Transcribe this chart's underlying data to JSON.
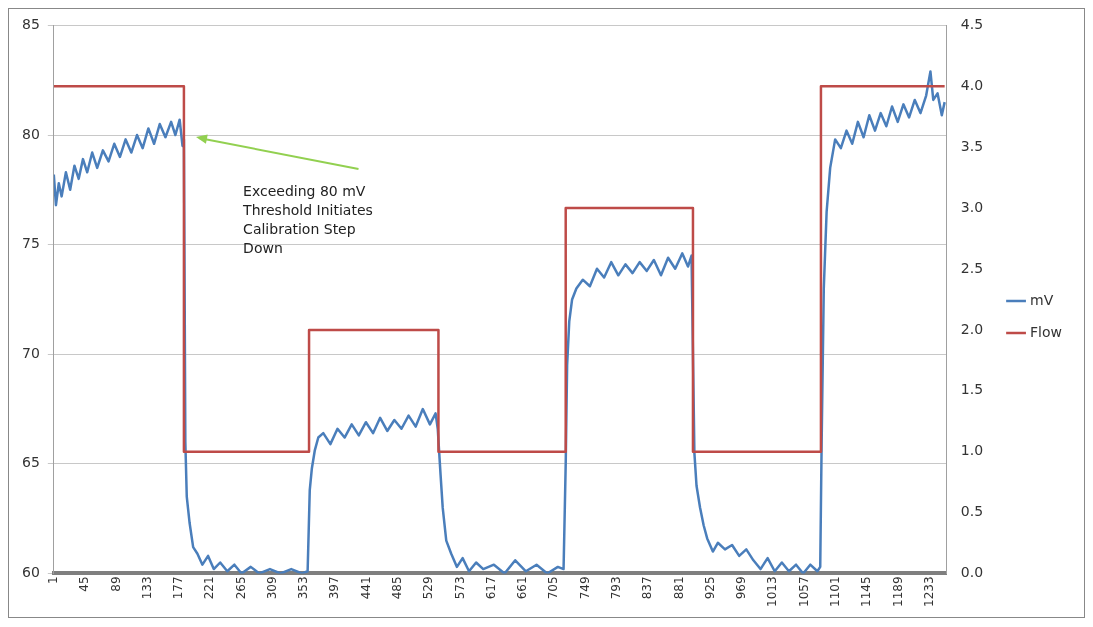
{
  "chart_data": {
    "type": "line",
    "xlim": [
      1,
      1257
    ],
    "xticks": [
      1,
      45,
      89,
      133,
      177,
      221,
      265,
      309,
      353,
      397,
      441,
      485,
      529,
      573,
      617,
      661,
      705,
      749,
      793,
      837,
      881,
      925,
      969,
      1013,
      1057,
      1101,
      1145,
      1189,
      1233
    ],
    "ylim": [
      60,
      85
    ],
    "yticks": [
      60,
      65,
      70,
      75,
      80,
      85
    ],
    "y2lim": [
      0,
      4.5
    ],
    "y2ticks": [
      {
        "value": 0,
        "label": "0.0"
      },
      {
        "value": 0.5,
        "label": "0.5"
      },
      {
        "value": 1,
        "label": "1.0"
      },
      {
        "value": 1.5,
        "label": "1.5"
      },
      {
        "value": 2,
        "label": "2.0"
      },
      {
        "value": 2.5,
        "label": "2.5"
      },
      {
        "value": 3,
        "label": "3.0"
      },
      {
        "value": 3.5,
        "label": "3.5"
      },
      {
        "value": 4,
        "label": "4.0"
      },
      {
        "value": 4.5,
        "label": "4.5"
      }
    ],
    "grid": "y",
    "legend": "right",
    "marker": "none",
    "annotations": [
      "Exceeding 80 mV Threshold Initiates Calibration Step Down"
    ],
    "series": [
      {
        "name": "mV",
        "color": "#4a7ebb",
        "type": "line",
        "x": [
          1,
          4,
          8,
          12,
          18,
          24,
          30,
          36,
          42,
          48,
          55,
          62,
          70,
          78,
          86,
          94,
          102,
          110,
          118,
          126,
          134,
          142,
          150,
          158,
          166,
          172,
          178,
          182,
          184,
          186,
          188,
          192,
          197,
          203,
          210,
          218,
          226,
          235,
          245,
          255,
          265,
          278,
          290,
          305,
          320,
          335,
          350,
          358,
          361,
          364,
          368,
          373,
          380,
          390,
          400,
          410,
          420,
          430,
          440,
          450,
          460,
          470,
          480,
          490,
          500,
          510,
          520,
          530,
          538,
          541,
          545,
          548,
          553,
          560,
          568,
          576,
          585,
          595,
          605,
          620,
          635,
          650,
          665,
          680,
          695,
          710,
          718,
          721,
          723,
          726,
          730,
          736,
          745,
          755,
          765,
          775,
          785,
          795,
          805,
          815,
          825,
          835,
          845,
          855,
          865,
          875,
          885,
          893,
          898,
          902,
          905,
          910,
          915,
          920,
          928,
          935,
          945,
          955,
          965,
          975,
          985,
          995,
          1005,
          1015,
          1025,
          1035,
          1045,
          1055,
          1065,
          1075,
          1079,
          1081,
          1084,
          1088,
          1093,
          1100,
          1108,
          1116,
          1124,
          1132,
          1140,
          1148,
          1156,
          1164,
          1172,
          1180,
          1188,
          1196,
          1204,
          1212,
          1220,
          1228,
          1234,
          1238,
          1244,
          1250,
          1254
        ],
        "values": [
          78.2,
          76.8,
          77.8,
          77.2,
          78.3,
          77.5,
          78.6,
          78.0,
          78.9,
          78.3,
          79.2,
          78.5,
          79.3,
          78.8,
          79.6,
          79.0,
          79.8,
          79.2,
          80.0,
          79.4,
          80.3,
          79.6,
          80.5,
          79.9,
          80.6,
          80.0,
          80.7,
          79.5,
          79.8,
          66.0,
          63.5,
          62.3,
          61.2,
          60.9,
          60.4,
          60.8,
          60.2,
          60.5,
          60.1,
          60.4,
          60.0,
          60.3,
          60.0,
          60.2,
          60.0,
          60.2,
          60.0,
          60.1,
          63.8,
          64.8,
          65.6,
          66.2,
          66.4,
          65.9,
          66.6,
          66.2,
          66.8,
          66.3,
          66.9,
          66.4,
          67.1,
          66.5,
          67.0,
          66.6,
          67.2,
          66.7,
          67.5,
          66.8,
          67.3,
          66.6,
          64.5,
          63.0,
          61.5,
          60.9,
          60.3,
          60.7,
          60.1,
          60.5,
          60.2,
          60.4,
          60.0,
          60.6,
          60.1,
          60.4,
          60.0,
          60.3,
          60.2,
          65.0,
          69.5,
          71.5,
          72.5,
          73.0,
          73.4,
          73.1,
          73.9,
          73.5,
          74.2,
          73.6,
          74.1,
          73.7,
          74.2,
          73.8,
          74.3,
          73.6,
          74.4,
          73.9,
          74.6,
          74.0,
          74.5,
          65.5,
          64.0,
          63.0,
          62.2,
          61.6,
          61.0,
          61.4,
          61.1,
          61.3,
          60.8,
          61.1,
          60.6,
          60.2,
          60.7,
          60.1,
          60.5,
          60.1,
          60.4,
          60.0,
          60.4,
          60.1,
          60.3,
          66.0,
          73.0,
          76.5,
          78.5,
          79.8,
          79.4,
          80.2,
          79.6,
          80.6,
          79.9,
          80.9,
          80.2,
          81.0,
          80.4,
          81.3,
          80.6,
          81.4,
          80.8,
          81.6,
          81.0,
          81.8,
          82.9,
          81.6,
          81.9,
          80.9,
          81.5
        ]
      },
      {
        "name": "Flow",
        "color": "#be4b48",
        "type": "step",
        "axis": "y2",
        "x": [
          1,
          184,
          360,
          542,
          721,
          900,
          1080,
          1254
        ],
        "values": [
          4,
          1,
          2,
          1,
          3,
          1,
          4,
          4
        ]
      }
    ]
  }
}
